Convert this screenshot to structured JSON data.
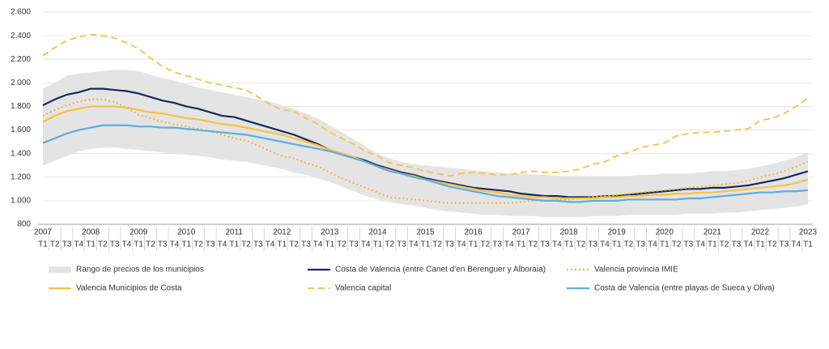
{
  "chart_data": {
    "type": "line",
    "categories": [
      "T1",
      "T2",
      "T3",
      "T4",
      "T1",
      "T2",
      "T3",
      "T4",
      "T1",
      "T2",
      "T3",
      "T4",
      "T1",
      "T2",
      "T3",
      "T4",
      "T1",
      "T2",
      "T3",
      "T4",
      "T1",
      "T2",
      "T3",
      "T4",
      "T1",
      "T2",
      "T3",
      "T4",
      "T1",
      "T2",
      "T3",
      "T4",
      "T1",
      "T2",
      "T3",
      "T4",
      "T1",
      "T2",
      "T3",
      "T4",
      "T1",
      "T2",
      "T3",
      "T4",
      "T1",
      "T2",
      "T3",
      "T4",
      "T1",
      "T2",
      "T3",
      "T4",
      "T1",
      "T2",
      "T3",
      "T4",
      "T1",
      "T2",
      "T3",
      "T4",
      "T1",
      "T2",
      "T3",
      "T4",
      "T1"
    ],
    "year_labels": [
      "2007",
      "2008",
      "2009",
      "2010",
      "2011",
      "2012",
      "2013",
      "2014",
      "2015",
      "2016",
      "2017",
      "2018",
      "2019",
      "2020",
      "2021",
      "2022",
      "2023"
    ],
    "ylim": [
      800,
      2600
    ],
    "yticks": [
      800,
      {
        "value": 1000,
        "label": "1.000"
      },
      {
        "value": 1200,
        "label": "1.200"
      },
      {
        "value": 1400,
        "label": "1.400"
      },
      {
        "value": 1600,
        "label": "1.600"
      },
      {
        "value": 1800,
        "label": "1.800"
      },
      {
        "value": 2000,
        "label": "2.000"
      },
      {
        "value": 2200,
        "label": "2.200"
      },
      {
        "value": 2400,
        "label": "2.400"
      },
      {
        "value": 2600,
        "label": "2.600"
      }
    ],
    "grid": true,
    "range": {
      "name": "Rango de precios de los municipios",
      "color": "#e4e4e4",
      "high": [
        1950,
        2000,
        2060,
        2080,
        2090,
        2100,
        2110,
        2110,
        2100,
        2070,
        2040,
        2020,
        1990,
        1960,
        1940,
        1920,
        1900,
        1880,
        1860,
        1840,
        1810,
        1780,
        1740,
        1700,
        1640,
        1580,
        1520,
        1460,
        1400,
        1360,
        1330,
        1310,
        1300,
        1290,
        1280,
        1270,
        1260,
        1250,
        1240,
        1230,
        1230,
        1220,
        1220,
        1210,
        1210,
        1210,
        1210,
        1210,
        1210,
        1210,
        1220,
        1220,
        1230,
        1230,
        1230,
        1240,
        1250,
        1250,
        1260,
        1270,
        1290,
        1310,
        1340,
        1370,
        1410
      ],
      "low": [
        1300,
        1340,
        1380,
        1420,
        1440,
        1450,
        1450,
        1440,
        1430,
        1420,
        1410,
        1400,
        1390,
        1380,
        1370,
        1350,
        1340,
        1330,
        1310,
        1290,
        1270,
        1240,
        1220,
        1190,
        1160,
        1120,
        1080,
        1040,
        1010,
        990,
        970,
        960,
        940,
        920,
        910,
        900,
        890,
        880,
        880,
        870,
        870,
        870,
        860,
        860,
        860,
        860,
        870,
        870,
        870,
        880,
        880,
        880,
        880,
        880,
        890,
        890,
        890,
        900,
        900,
        910,
        920,
        930,
        940,
        950,
        970
      ]
    },
    "series": [
      {
        "name": "Costa de Valencia (entre Canet d’en Berenguer y Alboraia)",
        "color": "#1d2659",
        "dash": "solid",
        "values": [
          1810,
          1860,
          1900,
          1920,
          1950,
          1950,
          1940,
          1930,
          1910,
          1880,
          1850,
          1830,
          1800,
          1780,
          1750,
          1720,
          1710,
          1680,
          1650,
          1620,
          1590,
          1560,
          1520,
          1480,
          1430,
          1400,
          1370,
          1340,
          1300,
          1270,
          1240,
          1220,
          1190,
          1170,
          1150,
          1130,
          1110,
          1100,
          1090,
          1080,
          1060,
          1050,
          1040,
          1040,
          1030,
          1030,
          1030,
          1040,
          1040,
          1050,
          1060,
          1070,
          1080,
          1090,
          1100,
          1100,
          1110,
          1110,
          1120,
          1130,
          1150,
          1170,
          1190,
          1220,
          1250
        ]
      },
      {
        "name": "Valencia provincia IMIE",
        "color": "#f0b93a",
        "dash": "dotted",
        "values": [
          1720,
          1770,
          1810,
          1840,
          1860,
          1860,
          1840,
          1790,
          1730,
          1700,
          1670,
          1650,
          1630,
          1610,
          1590,
          1560,
          1530,
          1510,
          1470,
          1420,
          1380,
          1360,
          1320,
          1290,
          1240,
          1190,
          1150,
          1110,
          1070,
          1030,
          1020,
          1010,
          1000,
          990,
          980,
          980,
          980,
          980,
          980,
          980,
          990,
          1000,
          1000,
          1010,
          1010,
          1020,
          1030,
          1040,
          1050,
          1060,
          1070,
          1080,
          1090,
          1100,
          1110,
          1120,
          1130,
          1140,
          1150,
          1170,
          1200,
          1220,
          1250,
          1290,
          1330
        ]
      },
      {
        "name": "Valencia Municipios de Costa",
        "color": "#f5c242",
        "dash": "solid",
        "values": [
          1670,
          1720,
          1760,
          1780,
          1800,
          1800,
          1800,
          1790,
          1770,
          1750,
          1740,
          1720,
          1700,
          1690,
          1670,
          1650,
          1640,
          1620,
          1600,
          1580,
          1560,
          1530,
          1500,
          1470,
          1430,
          1400,
          1370,
          1330,
          1290,
          1260,
          1230,
          1210,
          1180,
          1160,
          1140,
          1120,
          1100,
          1080,
          1070,
          1050,
          1040,
          1030,
          1030,
          1020,
          1020,
          1020,
          1020,
          1030,
          1030,
          1040,
          1040,
          1050,
          1050,
          1060,
          1060,
          1070,
          1070,
          1080,
          1090,
          1100,
          1110,
          1120,
          1130,
          1150,
          1180
        ]
      },
      {
        "name": "Valencia capital",
        "color": "#f5c65a",
        "dash": "dashed",
        "values": [
          2230,
          2300,
          2360,
          2390,
          2410,
          2400,
          2380,
          2340,
          2290,
          2210,
          2140,
          2090,
          2060,
          2030,
          2000,
          1980,
          1960,
          1940,
          1880,
          1820,
          1770,
          1760,
          1700,
          1650,
          1580,
          1530,
          1480,
          1420,
          1380,
          1320,
          1300,
          1280,
          1250,
          1230,
          1210,
          1230,
          1240,
          1230,
          1220,
          1220,
          1240,
          1250,
          1240,
          1240,
          1250,
          1270,
          1310,
          1330,
          1380,
          1410,
          1450,
          1470,
          1490,
          1550,
          1570,
          1580,
          1580,
          1590,
          1600,
          1610,
          1680,
          1700,
          1740,
          1800,
          1870
        ]
      },
      {
        "name": "Costa de Valencia (entre playas de Sueca y Oliva)",
        "color": "#5aaee0",
        "dash": "solid",
        "values": [
          1490,
          1530,
          1570,
          1600,
          1620,
          1640,
          1640,
          1640,
          1630,
          1630,
          1620,
          1620,
          1610,
          1600,
          1590,
          1580,
          1570,
          1560,
          1540,
          1520,
          1500,
          1480,
          1460,
          1440,
          1420,
          1390,
          1360,
          1330,
          1290,
          1250,
          1230,
          1200,
          1180,
          1150,
          1120,
          1100,
          1080,
          1060,
          1040,
          1030,
          1020,
          1010,
          1000,
          1000,
          990,
          990,
          1000,
          1000,
          1000,
          1010,
          1010,
          1010,
          1010,
          1010,
          1020,
          1020,
          1030,
          1040,
          1050,
          1060,
          1070,
          1070,
          1080,
          1080,
          1090
        ]
      }
    ]
  }
}
